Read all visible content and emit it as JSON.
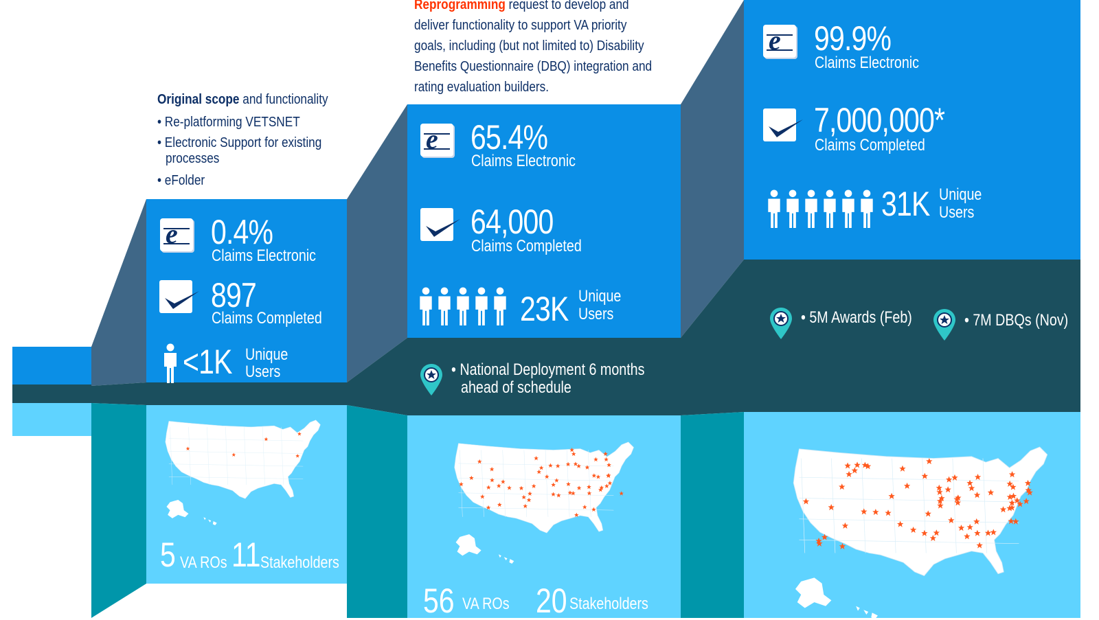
{
  "stage1": {
    "intro_bold": "Original scope",
    "intro_rest": " and functionality",
    "bullets": [
      "• Re-platforming VETSNET",
      "• Electronic Support for existing",
      "processes",
      "• eFolder"
    ],
    "electronic_value": "0.4%",
    "electronic_label": "Claims Electronic",
    "completed_value": "897",
    "completed_label": "Claims Completed",
    "users_value": "<1K",
    "users_label_1": "Unique",
    "users_label_2": "Users",
    "ros_value": "5",
    "ros_label": "VA ROs",
    "stakeholders_value": "11",
    "stakeholders_label": "Stakeholders"
  },
  "stage2": {
    "intro_orange": "Reprogramming",
    "intro_line1_rest": " request to develop and",
    "intro_lines": [
      "deliver functionality to support VA priority",
      "goals, including (but not limited to) Disability",
      "Benefits Questionnaire (DBQ) integration and",
      "rating evaluation builders."
    ],
    "electronic_value": "65.4%",
    "electronic_label": "Claims Electronic",
    "completed_value": "64,000",
    "completed_label": "Claims Completed",
    "users_value": "23K",
    "users_label_1": "Unique",
    "users_label_2": "Users",
    "milestone_1": "• National Deployment 6 months",
    "milestone_2": "ahead of schedule",
    "ros_value": "56",
    "ros_label": "VA ROs",
    "stakeholders_value": "20",
    "stakeholders_label": "Stakeholders"
  },
  "stage3": {
    "electronic_value": "99.9%",
    "electronic_label": "Claims Electronic",
    "completed_value": "7,000,000*",
    "completed_label": "Claims Completed",
    "users_value": "31K",
    "users_label_1": "Unique",
    "users_label_2": "Users",
    "milestone_a": "• 5M Awards (Feb)",
    "milestone_b": "• 7M DBQs (Nov)"
  },
  "colors": {
    "blue": "#0b8fe6",
    "dark_teal": "#1b4f5e",
    "light_blue": "#5fd3ff",
    "teal": "#0096aa",
    "slate": "#3f6787",
    "navy": "#0d2f66",
    "orange": "#ff3300",
    "star": "#ff5a1f",
    "pin": "#2fc6c8"
  },
  "icons": [
    "e-icon",
    "checkmark-icon",
    "person-icon",
    "map-pin-star-icon",
    "us-map",
    "star-icon"
  ]
}
